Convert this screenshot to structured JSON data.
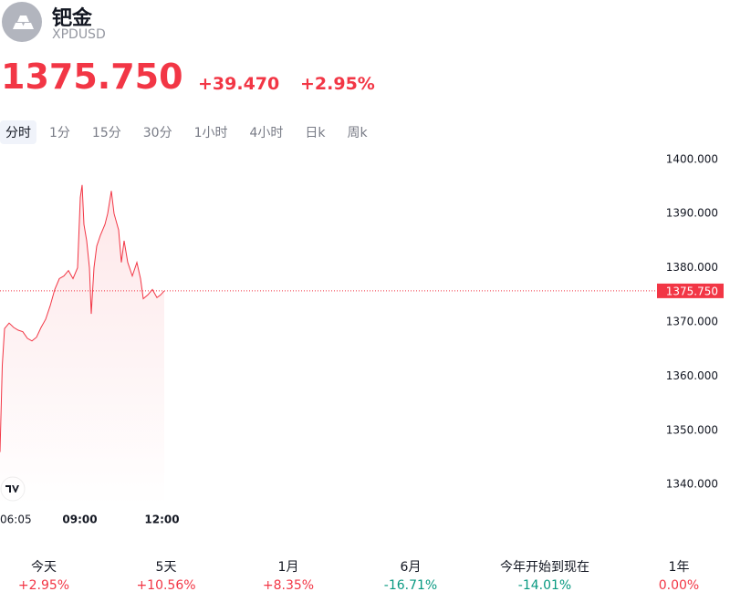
{
  "header": {
    "name": "钯金",
    "symbol": "XPDUSD",
    "price": "1375.750",
    "change": "+39.470",
    "change_percent": "+2.95%"
  },
  "tabs": [
    "分时",
    "1分",
    "15分",
    "30分",
    "1小时",
    "4小时",
    "日k",
    "周k"
  ],
  "selected_tab": 0,
  "chart_data": {
    "type": "line",
    "color": "#f23645",
    "x": [
      "06:05",
      "06:10",
      "06:15",
      "06:25",
      "06:35",
      "06:45",
      "06:55",
      "07:05",
      "07:15",
      "07:25",
      "07:35",
      "07:45",
      "07:55",
      "08:05",
      "08:15",
      "08:25",
      "08:35",
      "08:45",
      "08:55",
      "09:01",
      "09:05",
      "09:09",
      "09:15",
      "09:21",
      "09:25",
      "09:31",
      "09:37",
      "09:45",
      "09:55",
      "10:01",
      "10:09",
      "10:15",
      "10:25",
      "10:31",
      "10:37",
      "10:45",
      "10:55",
      "11:05",
      "11:13",
      "11:19",
      "11:29",
      "11:39",
      "11:49",
      "11:57",
      "12:05"
    ],
    "values": [
      1346,
      1362,
      1368.8,
      1369.8,
      1369,
      1368.5,
      1368.2,
      1367,
      1366.5,
      1367.2,
      1369,
      1370.5,
      1373,
      1376,
      1378,
      1378.5,
      1379.5,
      1378,
      1380,
      1393,
      1395.3,
      1388,
      1385,
      1380,
      1371.5,
      1380,
      1384,
      1386,
      1388,
      1390,
      1394.2,
      1390,
      1387,
      1381,
      1385,
      1381,
      1378.5,
      1381,
      1378,
      1374.3,
      1375,
      1376,
      1374.5,
      1375,
      1375.75
    ],
    "xlim": [
      "06:05",
      "05:55"
    ],
    "xticks": [
      "06:05",
      "09:00",
      "12:00"
    ],
    "ylim": [
      1336,
      1402.5
    ],
    "yticks": [
      {
        "value": 1340,
        "label": "1340.000"
      },
      {
        "value": 1350,
        "label": "1350.000"
      },
      {
        "value": 1360,
        "label": "1360.000"
      },
      {
        "value": 1370,
        "label": "1370.000"
      },
      {
        "value": 1380,
        "label": "1380.000"
      },
      {
        "value": 1390,
        "label": "1390.000"
      },
      {
        "value": 1400,
        "label": "1400.000"
      }
    ],
    "last_price": {
      "value": 1375.75,
      "label": "1375.750"
    }
  },
  "periods": [
    {
      "label": "今天",
      "value": "+2.95%",
      "color": "#f23645"
    },
    {
      "label": "5天",
      "value": "+10.56%",
      "color": "#f23645"
    },
    {
      "label": "1月",
      "value": "+8.35%",
      "color": "#f23645"
    },
    {
      "label": "6月",
      "value": "-16.71%",
      "color": "#089981"
    },
    {
      "label": "今年开始到现在",
      "value": "-14.01%",
      "color": "#089981"
    },
    {
      "label": "1年",
      "value": "0.00%",
      "color": "#f23645"
    }
  ]
}
